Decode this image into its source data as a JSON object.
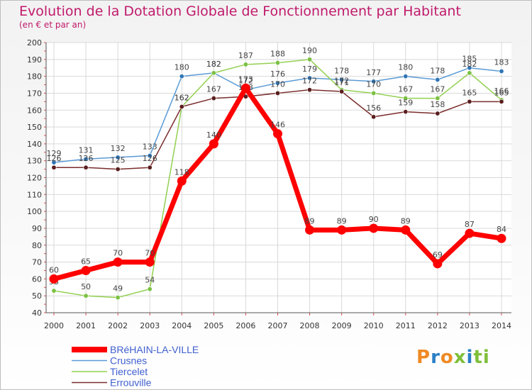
{
  "title": "Evolution de la Dotation Globale de Fonctionnement par Habitant",
  "subtitle": "(en € et par an)",
  "logo_text": "Proxiti",
  "colors": {
    "title": "#c01a6b",
    "grid": "#d9d9d9",
    "axis_text": "#333333"
  },
  "chart_data": {
    "type": "line",
    "title": "Evolution de la Dotation Globale de Fonctionnement par Habitant",
    "ylabel": "(en € et par an)",
    "xlabel": "",
    "ylim": [
      40,
      200
    ],
    "yticks": [
      40,
      50,
      60,
      70,
      80,
      90,
      100,
      110,
      120,
      130,
      140,
      150,
      160,
      170,
      180,
      190,
      200
    ],
    "categories": [
      "2000",
      "2001",
      "2002",
      "2003",
      "2004",
      "2005",
      "2006",
      "2007",
      "2008",
      "2009",
      "2010",
      "2011",
      "2012",
      "2013",
      "2014"
    ],
    "grid": true,
    "legend_position": "bottom-left",
    "series": [
      {
        "name": "Crusnes",
        "color": "#5b9bd5",
        "marker": "#2f75b5",
        "values": [
          129,
          131,
          132,
          133,
          180,
          182,
          172,
          176,
          179,
          178,
          177,
          180,
          178,
          185,
          183
        ]
      },
      {
        "name": "Tiercelet",
        "color": "#92d050",
        "marker": "#7ac142",
        "values": [
          53,
          50,
          49,
          54,
          162,
          182,
          187,
          188,
          190,
          172,
          170,
          167,
          167,
          182,
          166
        ]
      },
      {
        "name": "Errouville",
        "color": "#7b2c2c",
        "marker": "#5a1e1e",
        "values": [
          126,
          126,
          125,
          126,
          162,
          167,
          168,
          170,
          172,
          171,
          156,
          159,
          158,
          165,
          165
        ]
      },
      {
        "name": "BRéHAIN-LA-VILLE",
        "color": "#ff0000",
        "marker": "#ff0000",
        "values": [
          60,
          65,
          70,
          70,
          118,
          140,
          173,
          146,
          89,
          89,
          90,
          89,
          69,
          87,
          84
        ]
      }
    ],
    "legend_order": [
      "BRéHAIN-LA-VILLE",
      "Crusnes",
      "Tiercelet",
      "Errouville"
    ]
  }
}
